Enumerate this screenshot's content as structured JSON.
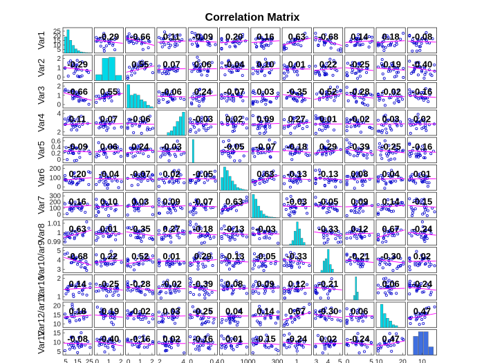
{
  "chart_data": {
    "type": "scatter-matrix",
    "title": "Correlation Matrix",
    "variables": [
      "Var1",
      "Var2",
      "Var3",
      "Var4",
      "Var5",
      "Var6",
      "Var7",
      "Var8",
      "Var9",
      "Var10",
      "Var11",
      "Var12"
    ],
    "row_label_texts": [
      "Var1",
      "Var2",
      "Var3",
      "Var4",
      "Var5",
      "Var6",
      "Var7",
      "Var8",
      "Var10/ar9",
      "Var10",
      "Var12/ar11",
      "Var12"
    ],
    "x_tick_labels": [
      [
        "5",
        "15",
        "25"
      ],
      [
        "0",
        "1",
        "2"
      ],
      [
        "0",
        "1",
        "2"
      ],
      [
        "2",
        "4"
      ],
      [
        "0",
        "0.4"
      ],
      [
        "0",
        "100"
      ],
      [
        "0",
        "300"
      ],
      [
        "1"
      ],
      [
        "3",
        "4",
        "5"
      ],
      [
        "0",
        "5"
      ],
      [
        "10",
        "20"
      ],
      [
        "10"
      ]
    ],
    "y_tick_labels": [
      [
        "25",
        "20",
        "15",
        "10",
        "5"
      ],
      [
        "2",
        "1",
        "0"
      ],
      [
        "2",
        "1",
        "0"
      ],
      [
        "4",
        "2"
      ],
      [
        "0.6",
        "0.4",
        "0.2",
        "0"
      ],
      [
        "200",
        "100",
        "0"
      ],
      [
        "300",
        "200",
        "100",
        "0"
      ],
      [
        "1.01",
        "1",
        "0.99"
      ],
      [
        "5",
        "4",
        "3"
      ],
      [
        "2",
        "1"
      ],
      [
        "20",
        "15",
        "10"
      ],
      [
        "15",
        "10",
        "5"
      ]
    ],
    "correlations": [
      [
        null,
        "-0.29",
        "-0.66",
        "0.11",
        "-0.09",
        "0.20",
        "0.16",
        "0.63",
        "-0.68",
        "0.14",
        "0.18",
        "-0.08"
      ],
      [
        "-0.29",
        null,
        "0.55",
        "0.07",
        "0.06",
        "-0.04",
        "0.10",
        "0.01",
        "0.22",
        "-0.25",
        "-0.19",
        "-0.40"
      ],
      [
        "-0.66",
        "0.55",
        null,
        "-0.06",
        "0.24",
        "-0.07",
        "0.03",
        "-0.35",
        "0.52",
        "-0.28",
        "-0.02",
        "-0.16"
      ],
      [
        "0.11",
        "0.07",
        "-0.06",
        null,
        "-0.03",
        "0.02",
        "0.09",
        "0.27",
        "0.01",
        "-0.02",
        "0.03",
        "0.02"
      ],
      [
        "-0.09",
        "0.06",
        "0.24",
        "-0.03",
        null,
        "-0.05",
        "-0.07",
        "-0.18",
        "0.29",
        "-0.39",
        "-0.25",
        "-0.16"
      ],
      [
        "0.20",
        "-0.04",
        "-0.07",
        "0.02",
        "-0.05",
        null,
        "0.63",
        "-0.13",
        "-0.13",
        "0.08",
        "0.04",
        "0.01"
      ],
      [
        "0.16",
        "0.10",
        "0.03",
        "0.09",
        "-0.07",
        "0.63",
        null,
        "-0.03",
        "-0.05",
        "0.09",
        "0.14",
        "-0.15"
      ],
      [
        "0.63",
        "0.01",
        "-0.35",
        "0.27",
        "-0.18",
        "-0.13",
        "-0.03",
        null,
        "-0.33",
        "0.12",
        "0.67",
        "-0.24"
      ],
      [
        "-0.68",
        "0.22",
        "0.52",
        "0.01",
        "0.29",
        "-0.13",
        "-0.05",
        "-0.33",
        null,
        "-0.21",
        "-0.30",
        "0.02"
      ],
      [
        "0.14",
        "-0.25",
        "-0.28",
        "-0.02",
        "-0.39",
        "0.08",
        "0.09",
        "0.12",
        "-0.21",
        null,
        "0.06",
        "-0.24"
      ],
      [
        "0.18",
        "-0.19",
        "-0.02",
        "0.03",
        "-0.25",
        "0.04",
        "0.14",
        "0.67",
        "-0.30",
        "0.06",
        null,
        "0.47"
      ],
      [
        "-0.08",
        "-0.40",
        "-0.16",
        "0.02",
        "-0.16",
        "0.01",
        "-0.15",
        "-0.24",
        "0.02",
        "-0.24",
        "0.47",
        null
      ]
    ],
    "histogram_shapes": [
      [
        0.7,
        1.0,
        0.55,
        0.33,
        0.18,
        0.1,
        0.05,
        0.03,
        0.02,
        0.01
      ],
      [
        0.25,
        0.95,
        1.0,
        0.22
      ],
      [
        1.0,
        0.55,
        0.6,
        0.55,
        0.35,
        0.28,
        0.12,
        0.05
      ],
      [
        0.12,
        0.2,
        0.38,
        0.6,
        0.8,
        1.0
      ],
      [
        1.0
      ],
      [
        0.55,
        1.0,
        0.85,
        0.6,
        0.4,
        0.25,
        0.12,
        0.07,
        0.04,
        0.02
      ],
      [
        1.0,
        0.8,
        0.5,
        0.3,
        0.15,
        0.08,
        0.04,
        0.03,
        0.02,
        0.01
      ],
      [
        0.05,
        0.2,
        0.6,
        1.0,
        0.7,
        0.3,
        0.12
      ],
      [
        0.1,
        0.5,
        0.6,
        1.0,
        0.35,
        0.15
      ],
      [
        0.2,
        1.0,
        0.35
      ],
      [
        1.0,
        0.6,
        0.4,
        0.28,
        0.12,
        0.08
      ],
      [
        0.8,
        1.0,
        1.0,
        0.35
      ]
    ],
    "colors": {
      "points": "#0000cc",
      "fit_line": "#ff00ff",
      "histogram": "#00d8e8",
      "histogram_last": "#3f6fe0",
      "axes": "#333333"
    }
  }
}
